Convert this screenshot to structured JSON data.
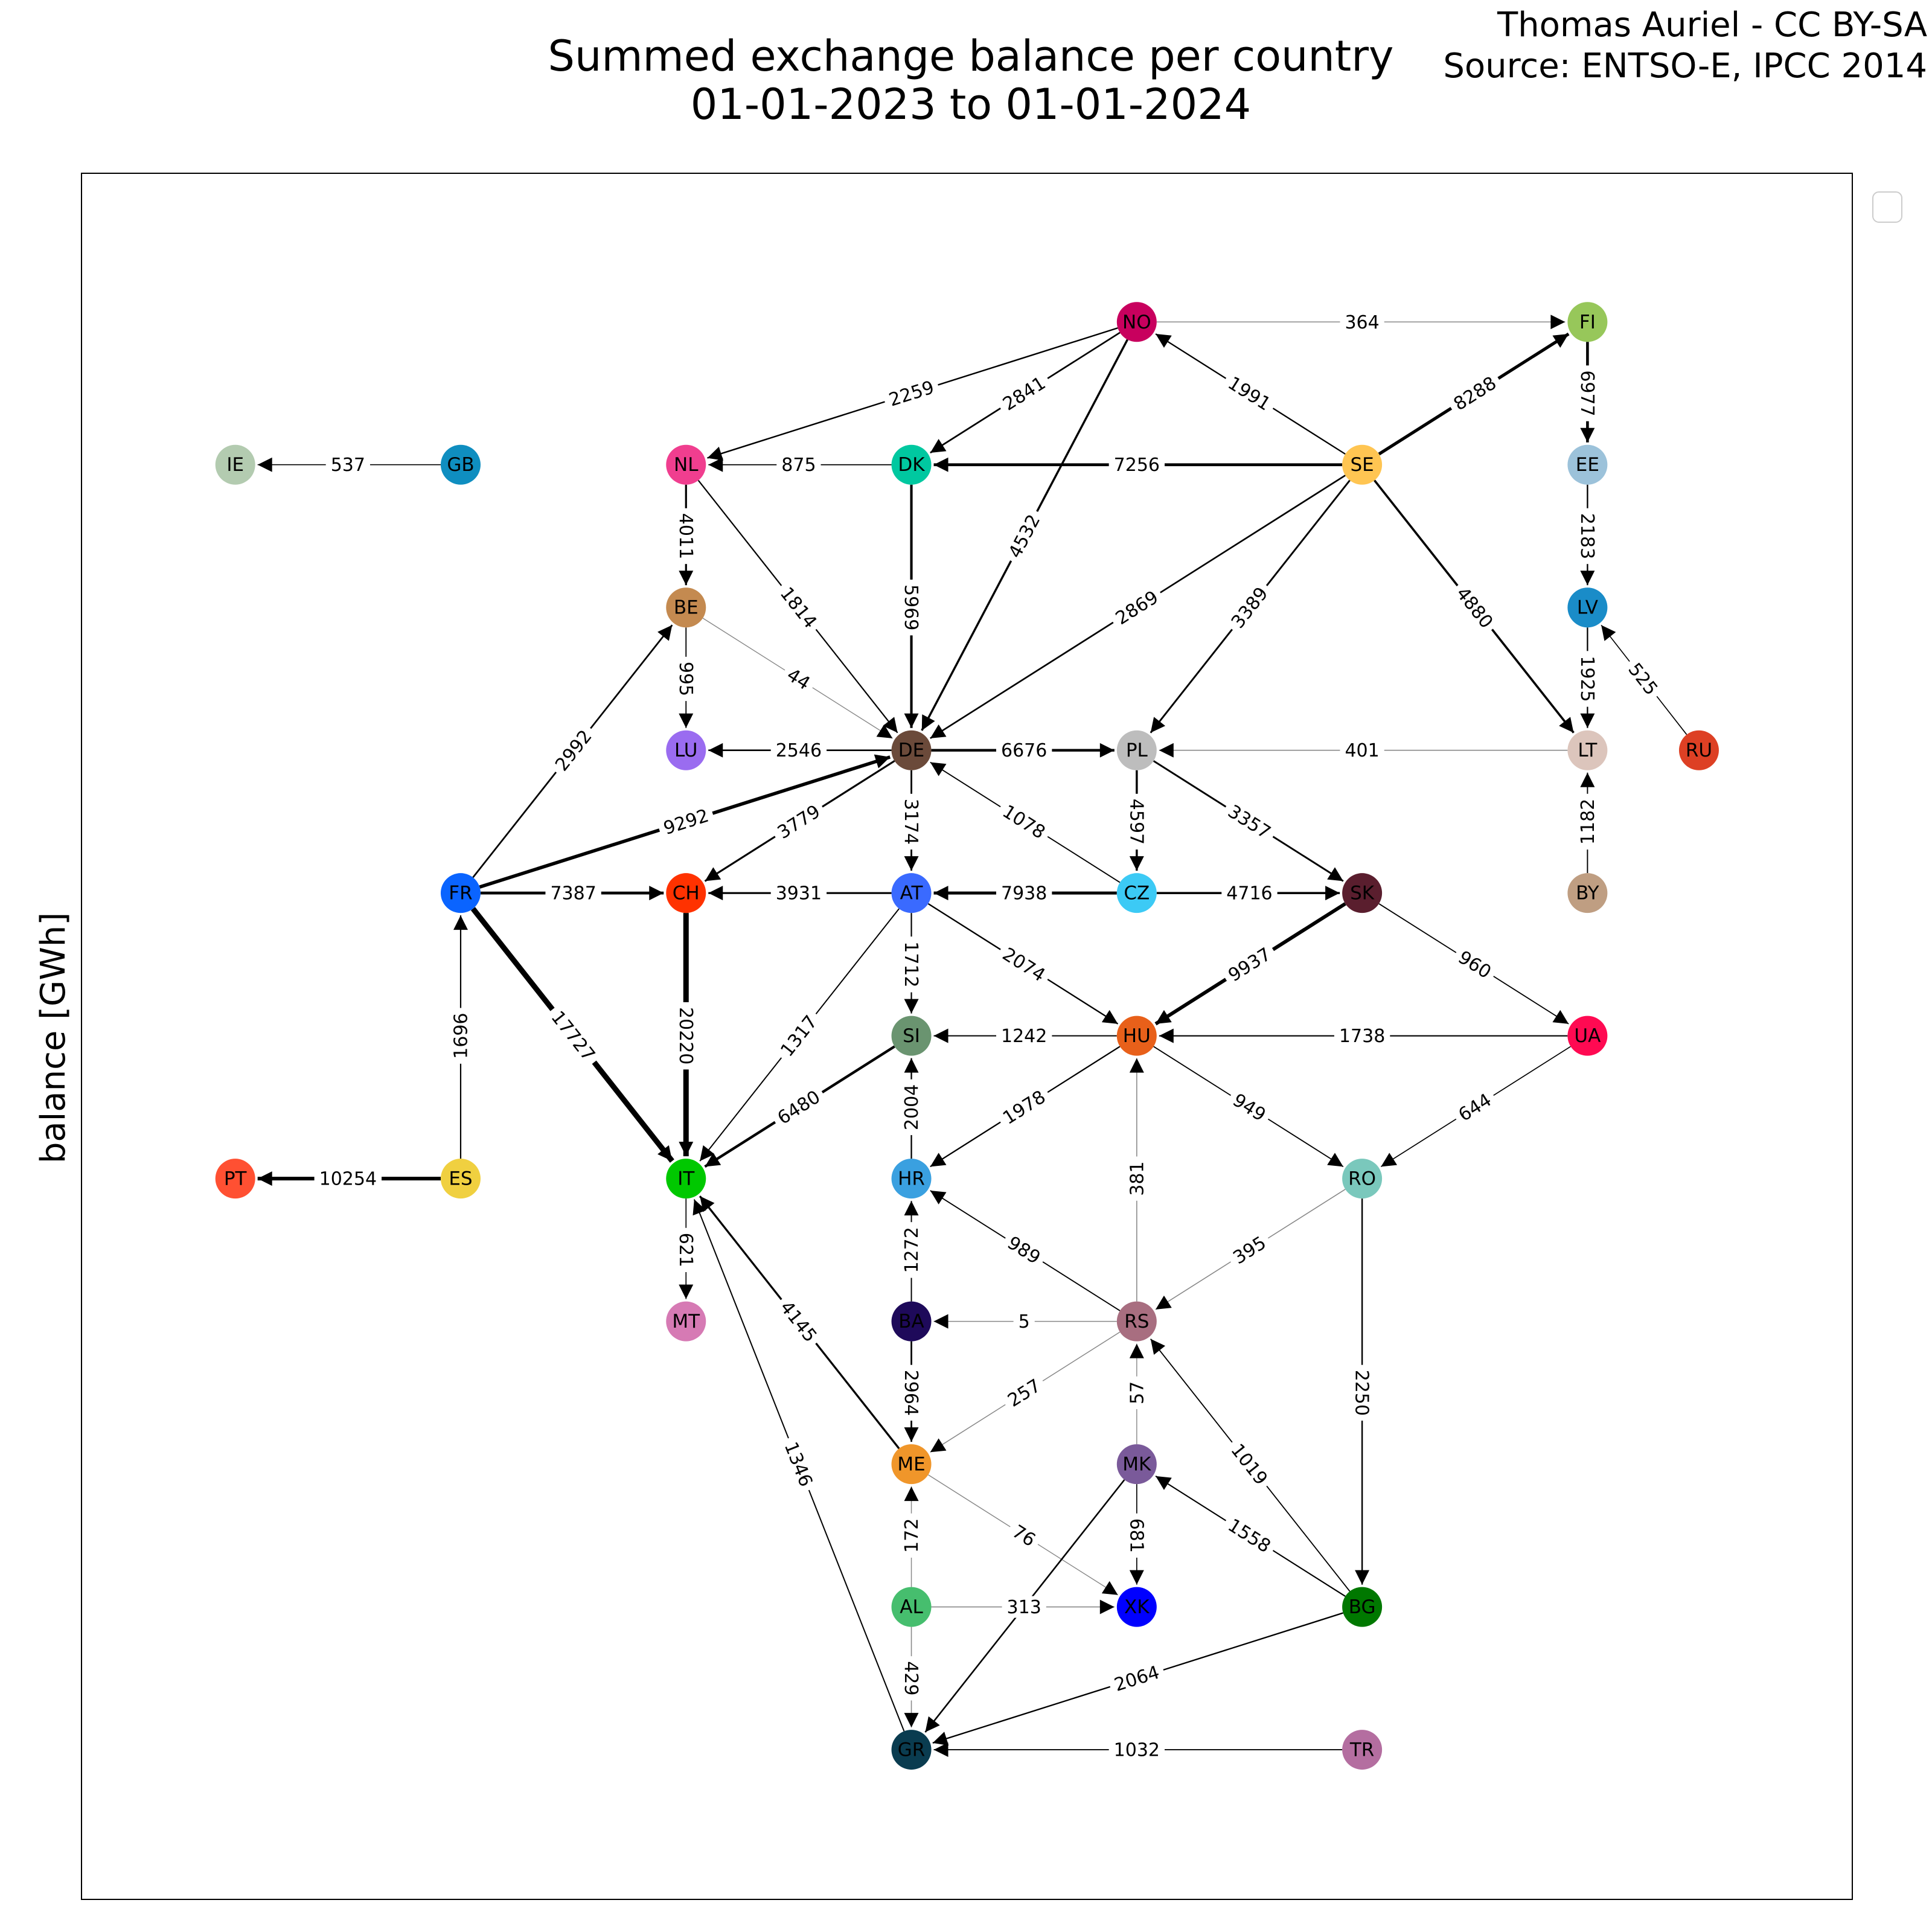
{
  "header": {
    "title": [
      "Summed exchange balance per country",
      "01-01-2023 to 01-01-2024"
    ],
    "credit": [
      "Thomas Auriel - CC BY-SA",
      "Source: ENTSO-E, IPCC 2014"
    ]
  },
  "axis_label": "balance [GWh]",
  "nodes": [
    {
      "label": "NO",
      "color": "#c8005e"
    },
    {
      "label": "FI",
      "color": "#97c75a"
    },
    {
      "label": "IE",
      "color": "#b3cbb0"
    },
    {
      "label": "GB",
      "color": "#0f8ec0"
    },
    {
      "label": "NL",
      "color": "#f03e8f"
    },
    {
      "label": "DK",
      "color": "#00c8a0"
    },
    {
      "label": "SE",
      "color": "#ffc552"
    },
    {
      "label": "EE",
      "color": "#9cc2da"
    },
    {
      "label": "BE",
      "color": "#c48a50"
    },
    {
      "label": "LV",
      "color": "#1a8cc8"
    },
    {
      "label": "LU",
      "color": "#9a6cf0"
    },
    {
      "label": "DE",
      "color": "#6b4a3a"
    },
    {
      "label": "PL",
      "color": "#bdbdbd"
    },
    {
      "label": "LT",
      "color": "#dcc5bc"
    },
    {
      "label": "RU",
      "color": "#dd4024"
    },
    {
      "label": "FR",
      "color": "#0a64ff"
    },
    {
      "label": "CH",
      "color": "#ff3200"
    },
    {
      "label": "AT",
      "color": "#3a6aff"
    },
    {
      "label": "CZ",
      "color": "#3ccaf5"
    },
    {
      "label": "SK",
      "color": "#5a1e2e"
    },
    {
      "label": "BY",
      "color": "#bf9e82"
    },
    {
      "label": "SI",
      "color": "#6a9470"
    },
    {
      "label": "HU",
      "color": "#e8601a"
    },
    {
      "label": "UA",
      "color": "#ff0a52"
    },
    {
      "label": "PT",
      "color": "#ff5032"
    },
    {
      "label": "ES",
      "color": "#f0d040"
    },
    {
      "label": "IT",
      "color": "#00c800"
    },
    {
      "label": "HR",
      "color": "#3aa0e0"
    },
    {
      "label": "RO",
      "color": "#7ac8bc"
    },
    {
      "label": "MT",
      "color": "#d67ab4"
    },
    {
      "label": "BA",
      "color": "#1e0a5a"
    },
    {
      "label": "RS",
      "color": "#a86e80"
    },
    {
      "label": "ME",
      "color": "#f0962a"
    },
    {
      "label": "MK",
      "color": "#7a5a9a"
    },
    {
      "label": "AL",
      "color": "#46be6e"
    },
    {
      "label": "XK",
      "color": "#0000ff"
    },
    {
      "label": "BG",
      "color": "#007800"
    },
    {
      "label": "GR",
      "color": "#0a3c50"
    },
    {
      "label": "TR",
      "color": "#b46ea0"
    }
  ],
  "edges": [
    {
      "value": 364
    },
    {
      "value": 1991
    },
    {
      "value": 2259
    },
    {
      "value": 2841
    },
    {
      "value": 4532
    },
    {
      "value": 8288
    },
    {
      "value": 6977
    },
    {
      "value": 537
    },
    {
      "value": 875
    },
    {
      "value": 7256
    },
    {
      "value": 4011
    },
    {
      "value": 2183
    },
    {
      "value": 1814
    },
    {
      "value": 5969
    },
    {
      "value": 2869
    },
    {
      "value": 3389
    },
    {
      "value": 4880
    },
    {
      "value": 525
    },
    {
      "value": 1925
    },
    {
      "value": 44
    },
    {
      "value": 995
    },
    {
      "value": 2546
    },
    {
      "value": 6676
    },
    {
      "value": 401
    },
    {
      "value": 2992
    },
    {
      "value": 9292
    },
    {
      "value": 3779
    },
    {
      "value": 3174
    },
    {
      "value": 1078
    },
    {
      "value": 4597
    },
    {
      "value": 3357
    },
    {
      "value": 1182
    },
    {
      "value": 7387
    },
    {
      "value": 3931
    },
    {
      "value": 7938
    },
    {
      "value": 4716
    },
    {
      "value": 960
    },
    {
      "value": 2074
    },
    {
      "value": 1712
    },
    {
      "value": 1317
    },
    {
      "value": 9937
    },
    {
      "value": 20220
    },
    {
      "value": 17727
    },
    {
      "value": 1696
    },
    {
      "value": 1242
    },
    {
      "value": 1738
    },
    {
      "value": 6480
    },
    {
      "value": 2004
    },
    {
      "value": 1978
    },
    {
      "value": 949
    },
    {
      "value": 644
    },
    {
      "value": 10254
    },
    {
      "value": 621
    },
    {
      "value": 381
    },
    {
      "value": 989
    },
    {
      "value": 1272
    },
    {
      "value": 395
    },
    {
      "value": 5
    },
    {
      "value": 4145
    },
    {
      "value": 1346
    },
    {
      "value": 2964
    },
    {
      "value": 257
    },
    {
      "value": 57
    },
    {
      "value": 2250
    },
    {
      "value": 1019
    },
    {
      "value": 1558
    },
    {
      "value": 172
    },
    {
      "value": 76
    },
    {
      "value": 681
    },
    {
      "value": 313
    },
    {
      "value": 429
    },
    {
      "value": 2064
    },
    {
      "value": 1032
    }
  ]
}
